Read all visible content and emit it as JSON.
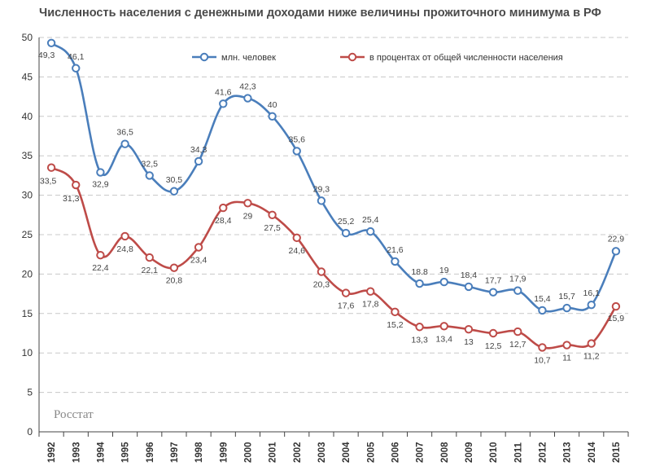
{
  "chart_data": {
    "type": "line",
    "title": "Численность населения с денежными доходами ниже величины прожиточного минимума в РФ",
    "source_label": "Росстат",
    "categories": [
      "1992",
      "1993",
      "1994",
      "1995",
      "1996",
      "1997",
      "1998",
      "1999",
      "2000",
      "2001",
      "2002",
      "2003",
      "2004",
      "2005",
      "2006",
      "2007",
      "2008",
      "2009",
      "2010",
      "2011",
      "2012",
      "2013",
      "2014",
      "2015"
    ],
    "ylim": [
      0,
      50
    ],
    "yticks": [
      0,
      5,
      10,
      15,
      20,
      25,
      30,
      35,
      40,
      45,
      50
    ],
    "grid": true,
    "legend_position": "top",
    "series": [
      {
        "name": "млн. человек",
        "color": "#4a7ebb",
        "values": [
          49.3,
          46.1,
          32.9,
          36.5,
          32.5,
          30.5,
          34.3,
          41.6,
          42.3,
          40,
          35.6,
          29.3,
          25.2,
          25.4,
          21.6,
          18.8,
          19,
          18.4,
          17.7,
          17.9,
          15.4,
          15.7,
          16.1,
          22.9
        ],
        "labels": [
          "49,3",
          "46,1",
          "32,9",
          "36,5",
          "32,5",
          "30,5",
          "34,3",
          "41,6",
          "42,3",
          "40",
          "35,6",
          "29,3",
          "25,2",
          "25,4",
          "21,6",
          "18.8",
          "19",
          "18,4",
          "17,7",
          "17,9",
          "15,4",
          "15,7",
          "16,1",
          "22,9"
        ]
      },
      {
        "name": "в процентах от общей численности населения",
        "color": "#be4b48",
        "values": [
          33.5,
          31.3,
          22.4,
          24.8,
          22.1,
          20.8,
          23.4,
          28.4,
          29,
          27.5,
          24.6,
          20.3,
          17.6,
          17.8,
          15.2,
          13.3,
          13.4,
          13,
          12.5,
          12.7,
          10.7,
          11,
          11.2,
          15.9
        ],
        "labels": [
          "33,5",
          "31,3",
          "22,4",
          "24,8",
          "22,1",
          "20,8",
          "23,4",
          "28,4",
          "29",
          "27,5",
          "24,6",
          "20,3",
          "17,6",
          "17,8",
          "15,2",
          "13,3",
          "13,4",
          "13",
          "12,5",
          "12,7",
          "10,7",
          "11",
          "11,2",
          "15,9"
        ]
      }
    ]
  }
}
